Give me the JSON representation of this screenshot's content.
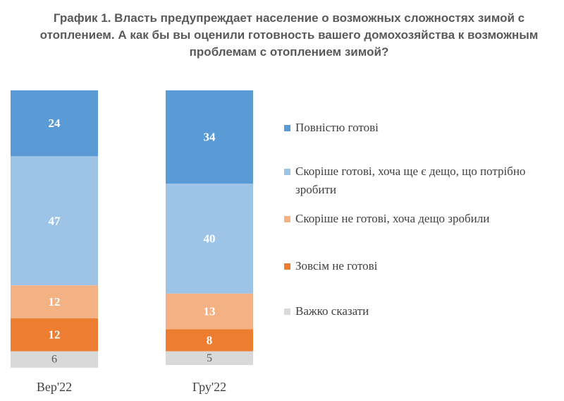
{
  "chart_data": {
    "type": "bar",
    "stacked": true,
    "title_lines": [
      "График 1. Власть предупреждает население о возможных сложностях зимой с",
      "отоплением. А как бы вы оценили готовность вашего домохозяйства к возможным",
      "проблемам с отоплением зимой?"
    ],
    "categories": [
      "Вер'22",
      "Гру'22"
    ],
    "series": [
      {
        "name": "Повністю готові",
        "color": "#5B9BD5",
        "label_color": "#ffffff",
        "values": [
          24,
          34
        ]
      },
      {
        "name": "Скоріше готові, хоча ще є дещо, що потрібно зробити",
        "color": "#9DC3E6",
        "label_color": "#ffffff",
        "values": [
          47,
          40
        ]
      },
      {
        "name": "Скоріше не готові, хоча дещо зробили",
        "color": "#F4B183",
        "label_color": "#ffffff",
        "values": [
          12,
          13
        ]
      },
      {
        "name": "Зовсім не готові",
        "color": "#ED7D31",
        "label_color": "#ffffff",
        "values": [
          12,
          8
        ]
      },
      {
        "name": "Важко сказати",
        "color": "#D9D9D9",
        "label_color": "#595959",
        "values": [
          6,
          5
        ]
      }
    ],
    "legend_position": "right",
    "grid": false
  }
}
